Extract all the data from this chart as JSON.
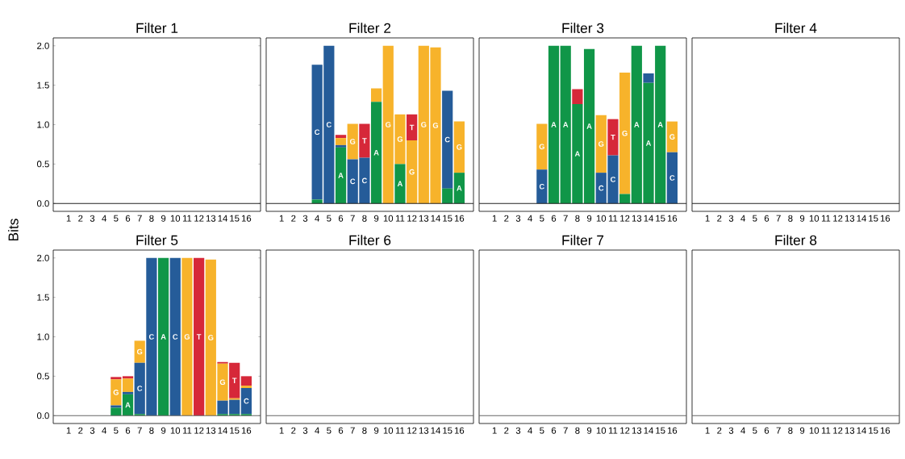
{
  "chart_data": [
    {
      "type": "bar",
      "stacked": true,
      "title": "Filter 1",
      "ylabel": "Bits",
      "categories": [
        "1",
        "2",
        "3",
        "4",
        "5",
        "6",
        "7",
        "8",
        "9",
        "10",
        "11",
        "12",
        "13",
        "14",
        "15",
        "16"
      ],
      "ylim": [
        -0.1,
        2.1
      ],
      "yticks": [
        {
          "value": 0,
          "label": "0.0"
        },
        {
          "value": 0.5,
          "label": "0.5"
        },
        {
          "value": 1,
          "label": "1.0"
        },
        {
          "value": 1.5,
          "label": "1.5"
        },
        {
          "value": 2,
          "label": "2.0"
        }
      ],
      "ref_lines": [
        {
          "axis": "y",
          "value": 0,
          "color": "#222222"
        }
      ],
      "series": [
        {
          "color": "#109648",
          "values": [
            0,
            0,
            0,
            0,
            0,
            0,
            0,
            0,
            0,
            0,
            0,
            0,
            0,
            0,
            0,
            0
          ]
        },
        {
          "color": "#255c99",
          "values": [
            0,
            0,
            0,
            0,
            0,
            0,
            0,
            0,
            0,
            0,
            0,
            0,
            0,
            0,
            0,
            0
          ]
        },
        {
          "color": "#f7b32b",
          "values": [
            0,
            0,
            0,
            0,
            0,
            0,
            0,
            0,
            0,
            0,
            0,
            0,
            0,
            0,
            0,
            0
          ]
        },
        {
          "color": "#d62839",
          "values": [
            0,
            0,
            0,
            0,
            0,
            0,
            0,
            0,
            0,
            0,
            0,
            0,
            0,
            0,
            0,
            0
          ]
        }
      ]
    },
    {
      "type": "bar",
      "stacked": true,
      "title": "Filter 2",
      "tick_labels": "x",
      "categories": [
        "1",
        "2",
        "3",
        "4",
        "5",
        "6",
        "7",
        "8",
        "9",
        "10",
        "11",
        "12",
        "13",
        "14",
        "15",
        "16"
      ],
      "ylim": [
        -0.1,
        2.1
      ],
      "ref_lines": [
        {
          "axis": "y",
          "value": 0,
          "color": "#222222"
        }
      ],
      "series": [
        {
          "name": "A",
          "color": "#109648",
          "values": [
            0,
            0,
            0,
            0.05,
            0,
            0.71,
            0,
            0,
            1.29,
            0,
            0.5,
            0,
            0,
            0,
            0.19,
            0.39
          ]
        },
        {
          "name": "C",
          "color": "#255c99",
          "values": [
            0,
            0,
            0,
            1.71,
            2.0,
            0.03,
            0.56,
            0.58,
            0,
            0,
            0,
            0,
            0,
            0,
            1.24,
            0
          ]
        },
        {
          "name": "G",
          "color": "#f7b32b",
          "values": [
            0,
            0,
            0,
            0,
            0,
            0.09,
            0.45,
            0,
            0.17,
            2.0,
            0.63,
            0.8,
            2.0,
            1.98,
            0,
            0.65
          ]
        },
        {
          "name": "T",
          "color": "#d62839",
          "values": [
            0,
            0,
            0,
            0,
            0,
            0.04,
            0,
            0.43,
            0,
            0,
            0,
            0.33,
            0,
            0,
            0,
            0
          ]
        }
      ]
    },
    {
      "type": "bar",
      "stacked": true,
      "title": "Filter 3",
      "tick_labels": "x",
      "categories": [
        "1",
        "2",
        "3",
        "4",
        "5",
        "6",
        "7",
        "8",
        "9",
        "10",
        "11",
        "12",
        "13",
        "14",
        "15",
        "16"
      ],
      "ylim": [
        -0.1,
        2.1
      ],
      "ref_lines": [
        {
          "axis": "y",
          "value": 0,
          "color": "#222222"
        }
      ],
      "series": [
        {
          "name": "A",
          "color": "#109648",
          "values": [
            0,
            0,
            0,
            0,
            0,
            2.0,
            2.0,
            1.26,
            1.96,
            0,
            0,
            0.12,
            2.0,
            1.53,
            2.0,
            0
          ]
        },
        {
          "name": "C",
          "color": "#255c99",
          "values": [
            0,
            0,
            0,
            0,
            0.43,
            0,
            0,
            0,
            0,
            0.39,
            0.61,
            0,
            0,
            0.12,
            0,
            0.65
          ]
        },
        {
          "name": "G",
          "color": "#f7b32b",
          "values": [
            0,
            0,
            0,
            0,
            0.58,
            0,
            0,
            0,
            0,
            0.73,
            0,
            1.54,
            0,
            0,
            0,
            0.39
          ]
        },
        {
          "name": "T",
          "color": "#d62839",
          "values": [
            0,
            0,
            0,
            0,
            0,
            0,
            0,
            0.19,
            0,
            0,
            0.46,
            0,
            0,
            0,
            0,
            0
          ]
        }
      ]
    },
    {
      "type": "bar",
      "stacked": true,
      "title": "Filter 4",
      "tick_labels": "x",
      "categories": [
        "1",
        "2",
        "3",
        "4",
        "5",
        "6",
        "7",
        "8",
        "9",
        "10",
        "11",
        "12",
        "13",
        "14",
        "15",
        "16"
      ],
      "ylim": [
        -0.1,
        2.1
      ],
      "ref_lines": [
        {
          "axis": "y",
          "value": 0,
          "color": "#222222"
        }
      ],
      "series": [
        {
          "color": "#109648",
          "values": [
            0,
            0,
            0,
            0,
            0,
            0,
            0,
            0,
            0,
            0,
            0,
            0,
            0,
            0,
            0,
            0
          ]
        },
        {
          "color": "#255c99",
          "values": [
            0,
            0,
            0,
            0,
            0,
            0,
            0,
            0,
            0,
            0,
            0,
            0,
            0,
            0,
            0,
            0
          ]
        },
        {
          "color": "#f7b32b",
          "values": [
            0,
            0,
            0,
            0,
            0,
            0,
            0,
            0,
            0,
            0,
            0,
            0,
            0,
            0,
            0,
            0
          ]
        },
        {
          "color": "#d62839",
          "values": [
            0,
            0,
            0,
            0,
            0,
            0,
            0,
            0,
            0,
            0,
            0,
            0,
            0,
            0,
            0,
            0
          ]
        }
      ]
    },
    {
      "type": "bar",
      "stacked": true,
      "title": "Filter 5",
      "categories": [
        "1",
        "2",
        "3",
        "4",
        "5",
        "6",
        "7",
        "8",
        "9",
        "10",
        "11",
        "12",
        "13",
        "14",
        "15",
        "16"
      ],
      "ylim": [
        -0.1,
        2.1
      ],
      "yticks": [
        {
          "value": 0,
          "label": "0.0"
        },
        {
          "value": 0.5,
          "label": "0.5"
        },
        {
          "value": 1,
          "label": "1.0"
        },
        {
          "value": 1.5,
          "label": "1.5"
        },
        {
          "value": 2,
          "label": "2.0"
        }
      ],
      "ref_lines": [
        {
          "axis": "y",
          "value": 0,
          "color": "#666666"
        }
      ],
      "series": [
        {
          "name": "A",
          "color": "#109648",
          "values": [
            0,
            0,
            0,
            0,
            0.1,
            0.27,
            0.02,
            0,
            2.0,
            0,
            0,
            0,
            0,
            0.02,
            0.02,
            0.02
          ]
        },
        {
          "name": "C",
          "color": "#255c99",
          "values": [
            0,
            0,
            0,
            0,
            0.03,
            0.03,
            0.65,
            2.0,
            0,
            2.0,
            0,
            0,
            0,
            0.17,
            0.18,
            0.33
          ]
        },
        {
          "name": "G",
          "color": "#f7b32b",
          "values": [
            0,
            0,
            0,
            0,
            0.33,
            0.17,
            0.28,
            0,
            0,
            0,
            2.0,
            0,
            1.98,
            0.47,
            0.02,
            0.03
          ]
        },
        {
          "name": "T",
          "color": "#d62839",
          "values": [
            0,
            0,
            0,
            0,
            0.03,
            0.03,
            0,
            0,
            0,
            0,
            0,
            2.0,
            0,
            0.02,
            0.45,
            0.12
          ]
        }
      ]
    },
    {
      "type": "bar",
      "stacked": true,
      "title": "Filter 6",
      "tick_labels": "x",
      "categories": [
        "1",
        "2",
        "3",
        "4",
        "5",
        "6",
        "7",
        "8",
        "9",
        "10",
        "11",
        "12",
        "13",
        "14",
        "15",
        "16"
      ],
      "ylim": [
        -0.1,
        2.1
      ],
      "ref_lines": [
        {
          "axis": "y",
          "value": 0,
          "color": "#666666"
        }
      ],
      "series": [
        {
          "color": "#109648",
          "values": [
            0,
            0,
            0,
            0,
            0,
            0,
            0,
            0,
            0,
            0,
            0,
            0,
            0,
            0,
            0,
            0
          ]
        },
        {
          "color": "#255c99",
          "values": [
            0,
            0,
            0,
            0,
            0,
            0,
            0,
            0,
            0,
            0,
            0,
            0,
            0,
            0,
            0,
            0
          ]
        },
        {
          "color": "#f7b32b",
          "values": [
            0,
            0,
            0,
            0,
            0,
            0,
            0,
            0,
            0,
            0,
            0,
            0,
            0,
            0,
            0,
            0
          ]
        },
        {
          "color": "#d62839",
          "values": [
            0,
            0,
            0,
            0,
            0,
            0,
            0,
            0,
            0,
            0,
            0,
            0,
            0,
            0,
            0,
            0
          ]
        }
      ]
    },
    {
      "type": "bar",
      "stacked": true,
      "title": "Filter 7",
      "tick_labels": "x",
      "categories": [
        "1",
        "2",
        "3",
        "4",
        "5",
        "6",
        "7",
        "8",
        "9",
        "10",
        "11",
        "12",
        "13",
        "14",
        "15",
        "16"
      ],
      "ylim": [
        -0.1,
        2.1
      ],
      "ref_lines": [
        {
          "axis": "y",
          "value": 0,
          "color": "#666666"
        }
      ],
      "series": [
        {
          "color": "#109648",
          "values": [
            0,
            0,
            0,
            0,
            0,
            0,
            0,
            0,
            0,
            0,
            0,
            0,
            0,
            0,
            0,
            0
          ]
        },
        {
          "color": "#255c99",
          "values": [
            0,
            0,
            0,
            0,
            0,
            0,
            0,
            0,
            0,
            0,
            0,
            0,
            0,
            0,
            0,
            0
          ]
        },
        {
          "color": "#f7b32b",
          "values": [
            0,
            0,
            0,
            0,
            0,
            0,
            0,
            0,
            0,
            0,
            0,
            0,
            0,
            0,
            0,
            0
          ]
        },
        {
          "color": "#d62839",
          "values": [
            0,
            0,
            0,
            0,
            0,
            0,
            0,
            0,
            0,
            0,
            0,
            0,
            0,
            0,
            0,
            0
          ]
        }
      ]
    },
    {
      "type": "bar",
      "stacked": true,
      "title": "Filter 8",
      "tick_labels": "x",
      "categories": [
        "1",
        "2",
        "3",
        "4",
        "5",
        "6",
        "7",
        "8",
        "9",
        "10",
        "11",
        "12",
        "13",
        "14",
        "15",
        "16"
      ],
      "ylim": [
        -0.1,
        2.1
      ],
      "ref_lines": [
        {
          "axis": "y",
          "value": 0,
          "color": "#666666"
        }
      ],
      "series": [
        {
          "color": "#109648",
          "values": [
            0,
            0,
            0,
            0,
            0,
            0,
            0,
            0,
            0,
            0,
            0,
            0,
            0,
            0,
            0,
            0
          ]
        },
        {
          "color": "#255c99",
          "values": [
            0,
            0,
            0,
            0,
            0,
            0,
            0,
            0,
            0,
            0,
            0,
            0,
            0,
            0,
            0,
            0
          ]
        },
        {
          "color": "#f7b32b",
          "values": [
            0,
            0,
            0,
            0,
            0,
            0,
            0,
            0,
            0,
            0,
            0,
            0,
            0,
            0,
            0,
            0
          ]
        },
        {
          "color": "#d62839",
          "values": [
            0,
            0,
            0,
            0,
            0,
            0,
            0,
            0,
            0,
            0,
            0,
            0,
            0,
            0,
            0,
            0
          ]
        }
      ]
    }
  ]
}
